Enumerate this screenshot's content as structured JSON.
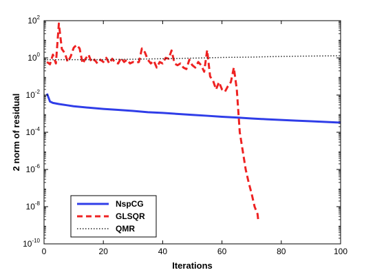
{
  "chart_data": {
    "type": "line",
    "title": "",
    "xlabel": "Iterations",
    "ylabel": "2 norm of residual",
    "xlim": [
      0,
      100
    ],
    "ylim": [
      1e-10,
      100
    ],
    "yscale": "log",
    "grid": false,
    "legend_position": "bottom-left",
    "x_ticks": [
      0,
      20,
      40,
      60,
      80,
      100
    ],
    "y_ticks": [
      {
        "base": "10",
        "exp": "-10",
        "value": 1e-10
      },
      {
        "base": "10",
        "exp": "-8",
        "value": 1e-08
      },
      {
        "base": "10",
        "exp": "-6",
        "value": 1e-06
      },
      {
        "base": "10",
        "exp": "-4",
        "value": 0.0001
      },
      {
        "base": "10",
        "exp": "-2",
        "value": 0.01
      },
      {
        "base": "10",
        "exp": "0",
        "value": 1
      },
      {
        "base": "10",
        "exp": "2",
        "value": 100
      }
    ],
    "series": [
      {
        "name": "NspCG",
        "color": "#2f3de8",
        "dash": "solid",
        "points": [
          [
            1,
            0.012
          ],
          [
            2,
            0.0045
          ],
          [
            3,
            0.0038
          ],
          [
            5,
            0.0033
          ],
          [
            8,
            0.0028
          ],
          [
            10,
            0.0025
          ],
          [
            15,
            0.0021
          ],
          [
            20,
            0.0018
          ],
          [
            25,
            0.0016
          ],
          [
            30,
            0.0014
          ],
          [
            35,
            0.0012
          ],
          [
            40,
            0.0011
          ],
          [
            45,
            0.00097
          ],
          [
            50,
            0.00086
          ],
          [
            55,
            0.00077
          ],
          [
            60,
            0.00068
          ],
          [
            65,
            0.00062
          ],
          [
            70,
            0.00055
          ],
          [
            75,
            0.0005
          ],
          [
            80,
            0.00046
          ],
          [
            85,
            0.00042
          ],
          [
            90,
            0.00039
          ],
          [
            95,
            0.00036
          ],
          [
            100,
            0.00033
          ]
        ]
      },
      {
        "name": "GLSQR",
        "color": "#ee2222",
        "dash": "dashed",
        "points": [
          [
            1,
            0.6
          ],
          [
            2,
            0.45
          ],
          [
            3,
            1.5
          ],
          [
            4,
            0.5
          ],
          [
            5,
            70
          ],
          [
            6,
            3
          ],
          [
            7,
            1.8
          ],
          [
            8,
            0.6
          ],
          [
            9,
            1.2
          ],
          [
            10,
            3.5
          ],
          [
            11,
            5
          ],
          [
            12,
            3.2
          ],
          [
            13,
            0.5
          ],
          [
            14,
            0.9
          ],
          [
            15,
            1.5
          ],
          [
            16,
            0.6
          ],
          [
            17,
            0.8
          ],
          [
            18,
            0.5
          ],
          [
            19,
            0.8
          ],
          [
            20,
            0.6
          ],
          [
            21,
            1.0
          ],
          [
            22,
            0.5
          ],
          [
            23,
            0.9
          ],
          [
            24,
            0.55
          ],
          [
            25,
            0.5
          ],
          [
            26,
            1.0
          ],
          [
            27,
            0.6
          ],
          [
            28,
            0.8
          ],
          [
            29,
            0.5
          ],
          [
            30,
            0.6
          ],
          [
            31,
            0.55
          ],
          [
            32,
            0.6
          ],
          [
            33,
            3.2
          ],
          [
            34,
            2.0
          ],
          [
            35,
            0.8
          ],
          [
            36,
            0.5
          ],
          [
            37,
            0.7
          ],
          [
            38,
            0.3
          ],
          [
            39,
            0.6
          ],
          [
            40,
            0.5
          ],
          [
            41,
            1.0
          ],
          [
            42,
            0.9
          ],
          [
            43,
            2.5
          ],
          [
            44,
            0.5
          ],
          [
            45,
            0.4
          ],
          [
            46,
            0.5
          ],
          [
            47,
            0.3
          ],
          [
            48,
            0.25
          ],
          [
            49,
            0.8
          ],
          [
            50,
            0.4
          ],
          [
            51,
            0.3
          ],
          [
            52,
            0.6
          ],
          [
            53,
            0.4
          ],
          [
            54,
            0.18
          ],
          [
            55,
            2.6
          ],
          [
            56,
            0.1
          ],
          [
            57,
            0.06
          ],
          [
            58,
            0.02
          ],
          [
            59,
            0.05
          ],
          [
            60,
            0.02
          ],
          [
            61,
            0.015
          ],
          [
            62,
            0.03
          ],
          [
            63,
            0.05
          ],
          [
            64,
            0.3
          ],
          [
            65,
            0.02
          ],
          [
            66,
            0.0001
          ],
          [
            67,
            1e-05
          ],
          [
            68,
            1e-06
          ],
          [
            69,
            2e-07
          ],
          [
            70,
            5e-08
          ],
          [
            71,
            1e-08
          ],
          [
            72,
            4e-09
          ],
          [
            72.2,
            2e-09
          ]
        ]
      },
      {
        "name": "QMR",
        "color": "#222222",
        "dash": "dotted",
        "points": [
          [
            1,
            0.8
          ],
          [
            20,
            0.8
          ],
          [
            40,
            0.9
          ],
          [
            55,
            1.0
          ],
          [
            60,
            1.05
          ],
          [
            70,
            1.1
          ],
          [
            80,
            1.2
          ],
          [
            90,
            1.25
          ],
          [
            100,
            1.3
          ]
        ]
      }
    ]
  }
}
